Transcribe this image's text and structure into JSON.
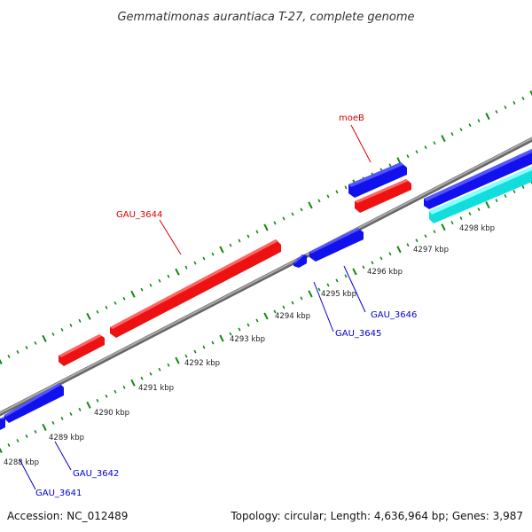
{
  "title": "Gemmatimonas aurantiaca T-27, complete genome",
  "footer": {
    "accession": "Accession: NC_012489",
    "summary": "Topology: circular; Length: 4,636,964 bp; Genes: 3,987"
  },
  "colors": {
    "forward_gene": "#ee1111",
    "reverse_gene": "#1111ee",
    "other_feature": "#11dddd",
    "backbone": "#999999",
    "tick": "#118811",
    "forward_label": "#dd0000",
    "reverse_label": "#0000cc"
  },
  "ticks": [
    {
      "label": "4288 kbp"
    },
    {
      "label": "4289 kbp"
    },
    {
      "label": "4290 kbp"
    },
    {
      "label": "4291 kbp"
    },
    {
      "label": "4292 kbp"
    },
    {
      "label": "4293 kbp"
    },
    {
      "label": "4294 kbp"
    },
    {
      "label": "4295 kbp"
    },
    {
      "label": "4296 kbp"
    },
    {
      "label": "4297 kbp"
    },
    {
      "label": "4298 kbp"
    }
  ],
  "genes": [
    {
      "label": "GAU_3641",
      "strand": "reverse"
    },
    {
      "label": "GAU_3642",
      "strand": "reverse"
    },
    {
      "label": "GAU_3644",
      "strand": "forward"
    },
    {
      "label": "GAU_3645",
      "strand": "reverse"
    },
    {
      "label": "GAU_3646",
      "strand": "reverse"
    },
    {
      "label": "moeB",
      "strand": "forward"
    }
  ]
}
